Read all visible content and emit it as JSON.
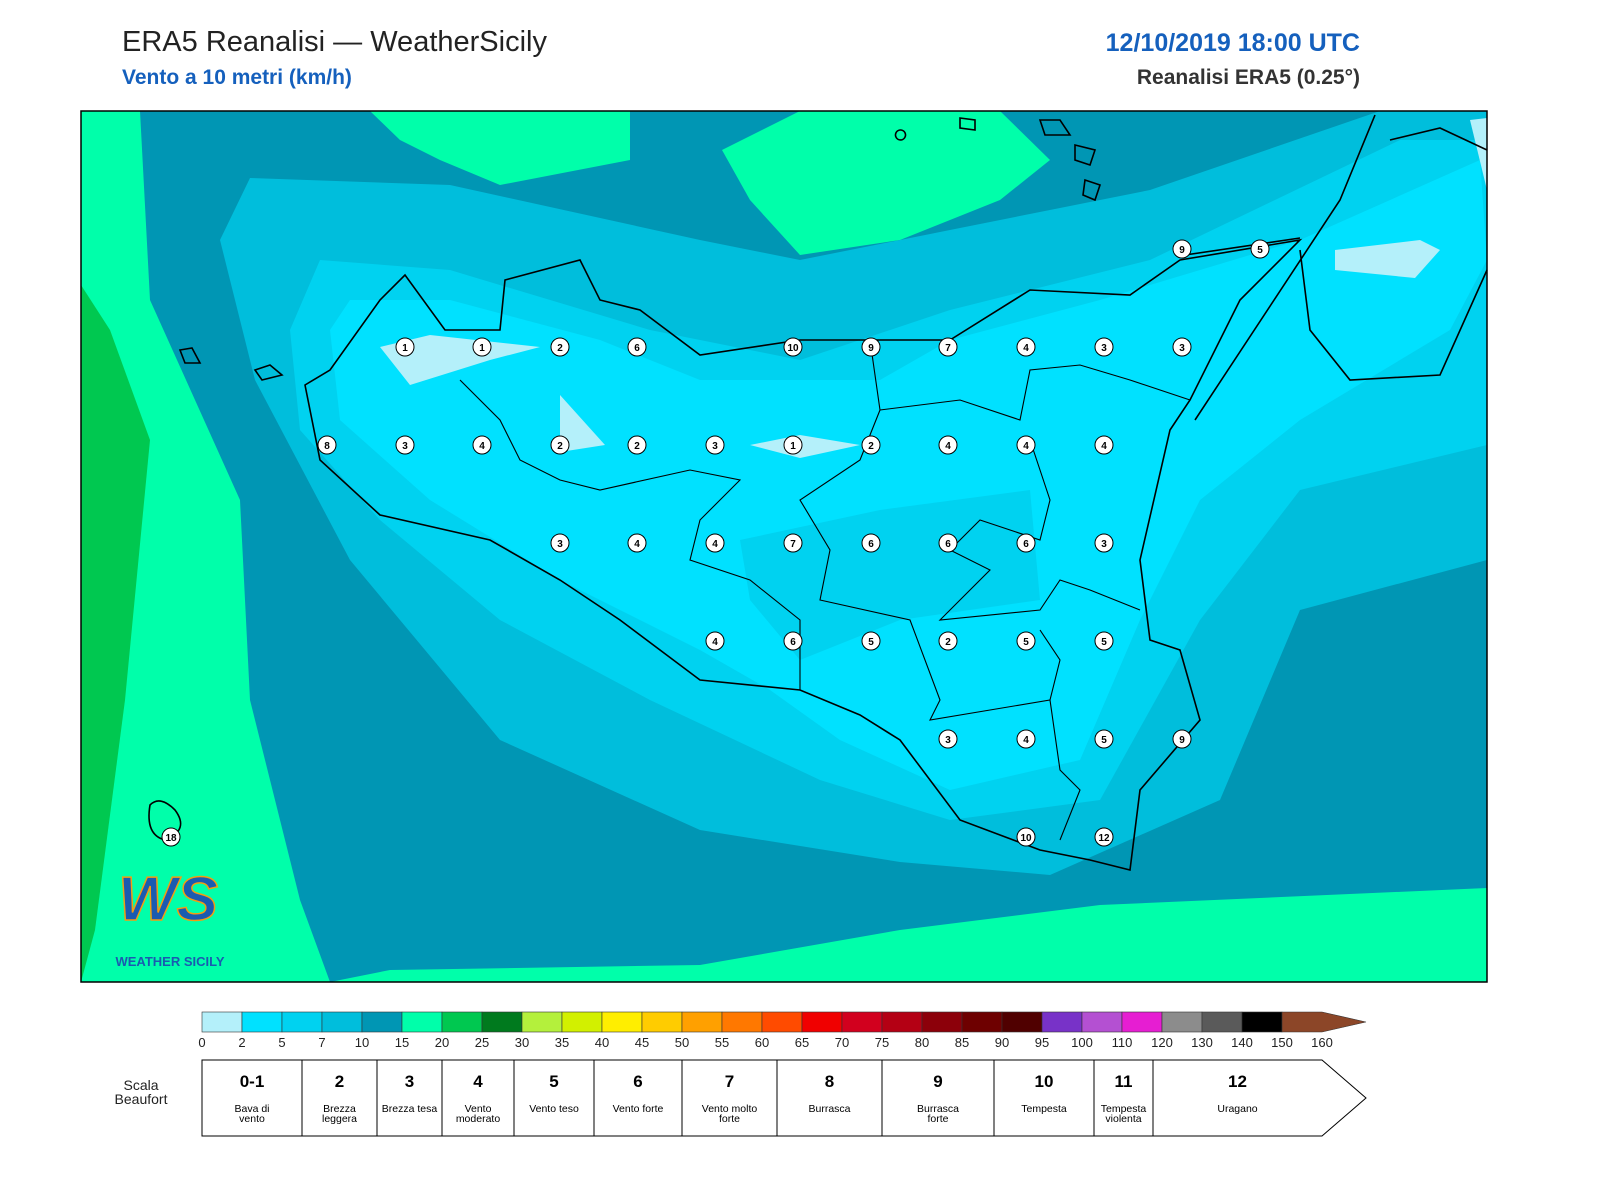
{
  "header": {
    "title": "ERA5 Reanalisi — WeatherSicily",
    "subtitle": "Vento a 10 metri (km/h)",
    "date": "12/10/2019 18:00 UTC",
    "source": "Reanalisi ERA5 (0.25°)"
  },
  "stations": [
    9,
    5,
    1,
    1,
    2,
    6,
    10,
    9,
    7,
    4,
    3,
    3,
    8,
    3,
    4,
    2,
    2,
    3,
    1,
    2,
    4,
    4,
    4,
    3,
    4,
    4,
    7,
    6,
    6,
    6,
    3,
    4,
    6,
    5,
    2,
    5,
    5,
    3,
    4,
    5,
    9,
    18,
    10,
    12
  ],
  "logo": {
    "mark": "WS",
    "name": "WEATHER SICILY"
  },
  "colorbar": {
    "ticks": [
      0,
      2,
      5,
      7,
      10,
      15,
      20,
      25,
      30,
      35,
      40,
      45,
      50,
      55,
      60,
      65,
      70,
      75,
      80,
      85,
      90,
      95,
      100,
      110,
      120,
      130,
      140,
      150,
      160
    ],
    "colors": [
      "#b4f0fa",
      "#00e1ff",
      "#00d2f0",
      "#00bedc",
      "#0096b4",
      "#00ffaa",
      "#00c850",
      "#007a1e",
      "#b4f03c",
      "#d2f000",
      "#ffee00",
      "#ffcc00",
      "#ffa000",
      "#ff7800",
      "#ff4b00",
      "#f00000",
      "#d2001e",
      "#b40014",
      "#8c000a",
      "#6e0000",
      "#500000",
      "#7832c8",
      "#b450d2",
      "#e61ed2",
      "#8c8c8c",
      "#5a5a5a",
      "#000000",
      "#8c4628",
      "#c87d46"
    ]
  },
  "beaufort": {
    "title": "Scala Beaufort",
    "levels": [
      {
        "force": "0-1",
        "label": "Bava di vento"
      },
      {
        "force": "2",
        "label": "Brezza leggera"
      },
      {
        "force": "3",
        "label": "Brezza tesa"
      },
      {
        "force": "4",
        "label": "Vento moderato"
      },
      {
        "force": "5",
        "label": "Vento teso"
      },
      {
        "force": "6",
        "label": "Vento forte"
      },
      {
        "force": "7",
        "label": "Vento molto forte"
      },
      {
        "force": "8",
        "label": "Burrasca"
      },
      {
        "force": "9",
        "label": "Burrasca forte"
      },
      {
        "force": "10",
        "label": "Tempesta"
      },
      {
        "force": "11",
        "label": "Tempesta violenta"
      },
      {
        "force": "12",
        "label": "Uragano"
      }
    ]
  }
}
